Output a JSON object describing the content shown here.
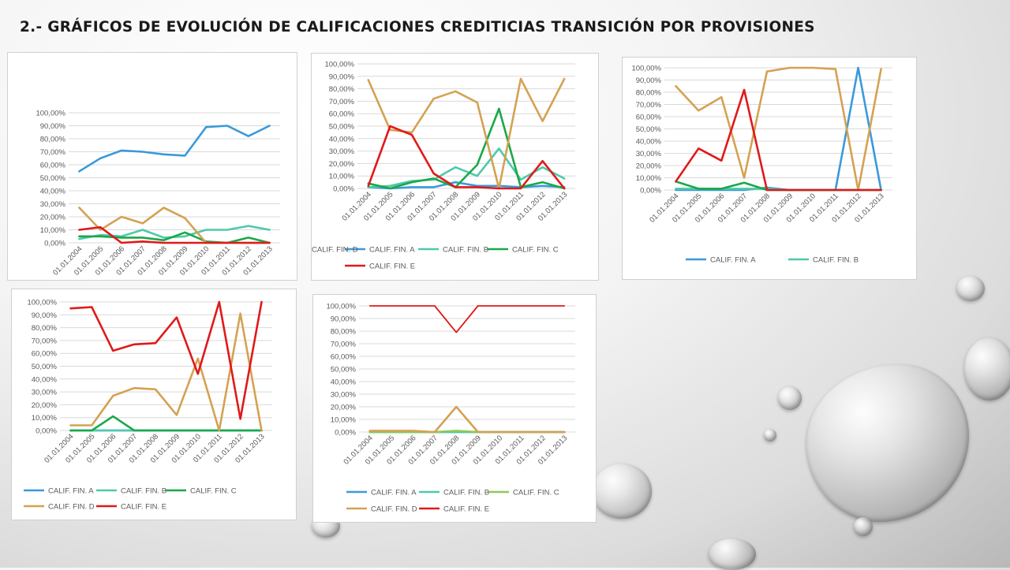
{
  "slide": {
    "title": "2.- GRÁFICOS DE EVOLUCIÓN DE CALIFICACIONES CREDITICIAS TRANSICIÓN POR PROVISIONES"
  },
  "colors": {
    "CALIF. FIN. A": "#3a9ad9",
    "CALIF. FIN. B": "#4fc9aa",
    "CALIF. FIN. C": "#1aa84a",
    "CALIF. FIN. C (chart 5)": "#8fc85a",
    "CALIF. FIN. D": "#d4a252",
    "CALIF. FIN. E": "#e0191b"
  },
  "chart_data": [
    {
      "type": "line",
      "title": "",
      "x": [
        "01.01.2004",
        "01.01.2005",
        "01.01.2006",
        "01.01.2007",
        "01.01.2008",
        "01.01.2009",
        "01.01.2010",
        "01.01.2011",
        "01.01.2012",
        "01.01.2013"
      ],
      "ylim": [
        0,
        100
      ],
      "yticks": [
        "0,00%",
        "10,00%",
        "20,00%",
        "30,00%",
        "40,00%",
        "50,00%",
        "60,00%",
        "70,00%",
        "80,00%",
        "90,00%",
        "100,00%"
      ],
      "legend_position": "bottom",
      "grid": true,
      "series": [
        {
          "name": "CALIF. FIN. A",
          "values": [
            55,
            65,
            71,
            70,
            68,
            67,
            89,
            90,
            82,
            90
          ]
        },
        {
          "name": "CALIF. FIN. B",
          "values": [
            3,
            6,
            5,
            10,
            4,
            5,
            10,
            10,
            13,
            10
          ]
        },
        {
          "name": "CALIF. FIN. C",
          "values": [
            5,
            5,
            4,
            4,
            2,
            8,
            1,
            0,
            4,
            0
          ]
        },
        {
          "name": "CALIF. FIN. D",
          "values": [
            27,
            10,
            20,
            15,
            27,
            19,
            0,
            0,
            0,
            0
          ]
        },
        {
          "name": "CALIF. FIN. E",
          "values": [
            10,
            12,
            0,
            1,
            0,
            0,
            0,
            0,
            0,
            0
          ]
        }
      ]
    },
    {
      "type": "line",
      "title": "",
      "x": [
        "01.01.2004",
        "01.01.2005",
        "01.01.2006",
        "01.01.2007",
        "01.01.2008",
        "01.01.2009",
        "01.01.2010",
        "01.01.2011",
        "01.01.2012",
        "01.01.2013"
      ],
      "ylim": [
        0,
        100
      ],
      "yticks": [
        "0,00%",
        "10,00%",
        "20,00%",
        "30,00%",
        "40,00%",
        "50,00%",
        "60,00%",
        "70,00%",
        "80,00%",
        "90,00%",
        "100,00%"
      ],
      "legend_position": "bottom",
      "grid": true,
      "series": [
        {
          "name": "CALIF. FIN. A",
          "values": [
            1,
            0,
            1,
            1,
            5,
            2,
            2,
            1,
            2,
            1
          ]
        },
        {
          "name": "CALIF. FIN. B",
          "values": [
            1,
            2,
            6,
            7,
            17,
            10,
            32,
            7,
            17,
            8
          ]
        },
        {
          "name": "CALIF. FIN. C",
          "values": [
            4,
            0,
            5,
            8,
            1,
            19,
            64,
            1,
            5,
            0
          ]
        },
        {
          "name": "CALIF. FIN. D",
          "values": [
            87,
            47,
            45,
            72,
            78,
            69,
            0,
            88,
            54,
            88
          ]
        },
        {
          "name": "CALIF. FIN. E",
          "values": [
            2,
            50,
            43,
            12,
            1,
            1,
            0,
            0,
            22,
            0
          ]
        }
      ]
    },
    {
      "type": "line",
      "title": "",
      "x": [
        "01.01.2004",
        "01.01.2005",
        "01.01.2006",
        "01.01.2007",
        "01.01.2008",
        "01.01.2009",
        "01.01.2010",
        "01.01.2011",
        "01.01.2012",
        "01.01.2013"
      ],
      "ylim": [
        0,
        100
      ],
      "yticks": [
        "0,00%",
        "10,00%",
        "20,00%",
        "30,00%",
        "40,00%",
        "50,00%",
        "60,00%",
        "70,00%",
        "80,00%",
        "90,00%",
        "100,00%"
      ],
      "legend_position": "bottom",
      "grid": true,
      "series": [
        {
          "name": "CALIF. FIN. A",
          "values": [
            0,
            0,
            0,
            0,
            2,
            0,
            0,
            0,
            100,
            0
          ]
        },
        {
          "name": "CALIF. FIN. B",
          "values": [
            1,
            1,
            1,
            1,
            1,
            0,
            0,
            0,
            0,
            0
          ]
        },
        {
          "name": "CALIF. FIN. C",
          "values": [
            7,
            1,
            1,
            6,
            0,
            0,
            0,
            0,
            0,
            0
          ]
        },
        {
          "name": "CALIF. FIN. D",
          "values": [
            85,
            65,
            76,
            10,
            97,
            100,
            100,
            99,
            0,
            99
          ]
        },
        {
          "name": "CALIF. FIN. E",
          "values": [
            7,
            34,
            24,
            82,
            0,
            0,
            0,
            0,
            0,
            0
          ]
        }
      ]
    },
    {
      "type": "line",
      "title": "",
      "x": [
        "01.01.2004",
        "01.01.2005",
        "01.01.2006",
        "01.01.2007",
        "01.01.2008",
        "01.01.2009",
        "01.01.2010",
        "01.01.2011",
        "01.01.2012",
        "01.01.2013"
      ],
      "ylim": [
        0,
        100
      ],
      "yticks": [
        "0,00%",
        "10,00%",
        "20,00%",
        "30,00%",
        "40,00%",
        "50,00%",
        "60,00%",
        "70,00%",
        "80,00%",
        "90,00%",
        "100,00%"
      ],
      "legend_position": "bottom",
      "grid": true,
      "series": [
        {
          "name": "CALIF. FIN. A",
          "values": [
            0,
            0,
            0,
            0,
            0,
            0,
            0,
            0,
            0,
            0
          ]
        },
        {
          "name": "CALIF. FIN. B",
          "values": [
            0,
            0,
            0,
            0,
            0,
            0,
            0,
            0,
            0,
            0
          ]
        },
        {
          "name": "CALIF. FIN. C",
          "values": [
            0,
            0,
            11,
            0,
            0,
            0,
            0,
            0,
            0,
            0
          ]
        },
        {
          "name": "CALIF. FIN. D",
          "values": [
            4,
            4,
            27,
            33,
            32,
            12,
            56,
            0,
            91,
            0
          ]
        },
        {
          "name": "CALIF. FIN. E",
          "values": [
            95,
            96,
            62,
            67,
            68,
            88,
            44,
            100,
            9,
            100
          ]
        }
      ]
    },
    {
      "type": "line",
      "title": "",
      "x": [
        "01.01.2004",
        "01.01.2005",
        "01.01.2006",
        "01.01.2007",
        "01.01.2008",
        "01.01.2009",
        "01.01.2010",
        "01.01.2011",
        "01.01.2012",
        "01.01.2013"
      ],
      "ylim": [
        0,
        100
      ],
      "yticks": [
        "0,00%",
        "10,00%",
        "20,00%",
        "30,00%",
        "40,00%",
        "50,00%",
        "60,00%",
        "70,00%",
        "80,00%",
        "90,00%",
        "100,00%"
      ],
      "legend_position": "bottom",
      "grid": true,
      "series": [
        {
          "name": "CALIF. FIN. A",
          "values": [
            0,
            0,
            0,
            0,
            0,
            0,
            0,
            0,
            0,
            0
          ]
        },
        {
          "name": "CALIF. FIN. B",
          "values": [
            0,
            0,
            0,
            0,
            0,
            0,
            0,
            0,
            0,
            0
          ]
        },
        {
          "name": "CALIF. FIN. C",
          "values": [
            0,
            0,
            0,
            0,
            1,
            0,
            0,
            0,
            0,
            0
          ]
        },
        {
          "name": "CALIF. FIN. D",
          "values": [
            1,
            1,
            1,
            0,
            20,
            0,
            0,
            0,
            0,
            0
          ]
        },
        {
          "name": "CALIF. FIN. E",
          "values": [
            100,
            100,
            100,
            100,
            79,
            100,
            100,
            100,
            100,
            100
          ]
        }
      ]
    }
  ]
}
